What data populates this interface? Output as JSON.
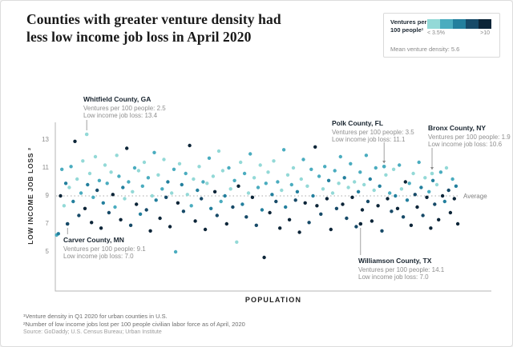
{
  "header": {
    "title_line1": "Counties with greater venture density had",
    "title_line2": "less low income job loss in April 2020"
  },
  "legend": {
    "title_line1": "Ventures per",
    "title_line2": "100 people¹",
    "min_label": "< 3.5%",
    "max_label": ">10",
    "mean_label": "Mean venture density: 5.6"
  },
  "footnotes": {
    "note1": "¹Venture density in Q1 2020 for urban counties in U.S.",
    "note2": "²Number of low income jobs lost per 100 people civilian labor force as of April, 2020",
    "source": "Source: GoDaddy; U.S. Census Bureau; Urban Institute"
  },
  "chart_data": {
    "type": "scatter",
    "xlabel": "POPULATION",
    "ylabel": "LOW INCOME JOB LOSS ²",
    "y_ticks": [
      13,
      11,
      9,
      7,
      5
    ],
    "ylim": [
      4,
      14
    ],
    "x_axis_note": "population rank, no numeric ticks shown",
    "average_value": 9,
    "average_label": "Average",
    "legend_position": "top-right",
    "grid": false,
    "palette": [
      "#93d9d7",
      "#4aacbf",
      "#237f9d",
      "#174a68",
      "#0c2538"
    ],
    "labeled_points": [
      {
        "name": "Whitfield County, GA",
        "ventures_label": "Ventures per 100 people: 2.5",
        "jobloss_label": "Low income job loss: 13.4",
        "x": 7.2,
        "y": 13.4,
        "c": 0
      },
      {
        "name": "Carver County, MN",
        "ventures_label": "Ventures per 100 people: 9.1",
        "jobloss_label": "Low income job loss: 7.0",
        "x": 2.8,
        "y": 7.0,
        "c": 3
      },
      {
        "name": "Polk County, FL",
        "ventures_label": "Ventures per 100 people: 3.5",
        "jobloss_label": "Low income job loss: 11.1",
        "x": 75.4,
        "y": 11.1,
        "c": 1
      },
      {
        "name": "Bronx County, NY",
        "ventures_label": "Ventures per 100 people: 1.9",
        "jobloss_label": "Low income job loss: 10.6",
        "x": 86.4,
        "y": 10.6,
        "c": 0
      },
      {
        "name": "Williamson County, TX",
        "ventures_label": "Ventures per 100 people: 14.1",
        "jobloss_label": "Low income job loss: 7.0",
        "x": 70.0,
        "y": 7.0,
        "c": 4
      }
    ],
    "points": [
      [
        0.3,
        6.2,
        1
      ],
      [
        0.7,
        6.3,
        2
      ],
      [
        1.2,
        9.0,
        4
      ],
      [
        1.5,
        10.9,
        1
      ],
      [
        2.0,
        8.3,
        0
      ],
      [
        2.4,
        9.9,
        2
      ],
      [
        3.2,
        9.6,
        0
      ],
      [
        3.6,
        11.1,
        1
      ],
      [
        4.1,
        8.6,
        2
      ],
      [
        4.5,
        12.9,
        4
      ],
      [
        5.0,
        10.2,
        0
      ],
      [
        5.4,
        7.6,
        3
      ],
      [
        5.9,
        9.2,
        1
      ],
      [
        6.3,
        11.5,
        0
      ],
      [
        6.8,
        8.1,
        4
      ],
      [
        7.4,
        9.8,
        2
      ],
      [
        7.9,
        10.6,
        0
      ],
      [
        8.3,
        7.1,
        4
      ],
      [
        8.7,
        8.9,
        1
      ],
      [
        9.2,
        11.8,
        0
      ],
      [
        9.6,
        9.4,
        3
      ],
      [
        10.1,
        10.1,
        1
      ],
      [
        10.5,
        6.7,
        4
      ],
      [
        11.0,
        8.5,
        2
      ],
      [
        11.4,
        11.2,
        0
      ],
      [
        11.9,
        9.9,
        1
      ],
      [
        12.3,
        7.8,
        3
      ],
      [
        12.8,
        10.7,
        0
      ],
      [
        13.2,
        9.1,
        4
      ],
      [
        13.7,
        8.2,
        1
      ],
      [
        14.1,
        11.9,
        0
      ],
      [
        14.6,
        10.4,
        1
      ],
      [
        15.0,
        7.3,
        4
      ],
      [
        15.5,
        9.6,
        2
      ],
      [
        15.9,
        8.8,
        0
      ],
      [
        16.4,
        12.4,
        4
      ],
      [
        16.8,
        10.0,
        1
      ],
      [
        17.3,
        6.9,
        3
      ],
      [
        17.7,
        9.3,
        0
      ],
      [
        18.2,
        11.0,
        1
      ],
      [
        18.6,
        8.4,
        4
      ],
      [
        19.1,
        10.8,
        0
      ],
      [
        19.5,
        7.7,
        2
      ],
      [
        20.0,
        9.7,
        1
      ],
      [
        20.4,
        11.4,
        0
      ],
      [
        20.9,
        8.0,
        3
      ],
      [
        21.3,
        10.3,
        1
      ],
      [
        21.8,
        6.5,
        4
      ],
      [
        22.2,
        9.0,
        0
      ],
      [
        22.7,
        12.1,
        1
      ],
      [
        23.1,
        8.7,
        2
      ],
      [
        23.6,
        10.5,
        0
      ],
      [
        24.0,
        7.4,
        4
      ],
      [
        24.5,
        9.5,
        1
      ],
      [
        24.9,
        11.6,
        0
      ],
      [
        25.4,
        8.9,
        3
      ],
      [
        25.8,
        10.0,
        2
      ],
      [
        26.3,
        6.8,
        4
      ],
      [
        26.7,
        9.2,
        0
      ],
      [
        27.2,
        10.9,
        1
      ],
      [
        27.6,
        5.0,
        1
      ],
      [
        28.1,
        8.5,
        4
      ],
      [
        28.5,
        11.3,
        0
      ],
      [
        29.0,
        9.8,
        2
      ],
      [
        29.4,
        7.9,
        3
      ],
      [
        29.9,
        10.6,
        1
      ],
      [
        30.3,
        9.1,
        0
      ],
      [
        30.8,
        12.6,
        4
      ],
      [
        31.2,
        8.3,
        1
      ],
      [
        31.7,
        10.2,
        0
      ],
      [
        32.1,
        7.2,
        4
      ],
      [
        32.6,
        9.4,
        2
      ],
      [
        33.0,
        11.1,
        0
      ],
      [
        33.5,
        8.8,
        3
      ],
      [
        33.9,
        10.0,
        1
      ],
      [
        34.4,
        6.6,
        4
      ],
      [
        34.8,
        9.9,
        0
      ],
      [
        35.3,
        11.7,
        1
      ],
      [
        35.7,
        8.1,
        2
      ],
      [
        36.2,
        10.4,
        0
      ],
      [
        36.6,
        9.3,
        4
      ],
      [
        37.1,
        7.6,
        3
      ],
      [
        37.5,
        12.2,
        0
      ],
      [
        38.0,
        8.6,
        1
      ],
      [
        38.4,
        10.8,
        0
      ],
      [
        38.9,
        9.0,
        2
      ],
      [
        39.3,
        7.0,
        4
      ],
      [
        39.8,
        11.0,
        1
      ],
      [
        40.2,
        9.5,
        0
      ],
      [
        40.7,
        8.2,
        3
      ],
      [
        41.1,
        10.1,
        1
      ],
      [
        41.6,
        5.7,
        0
      ],
      [
        42.0,
        9.7,
        4
      ],
      [
        42.5,
        11.4,
        0
      ],
      [
        42.9,
        8.4,
        2
      ],
      [
        43.4,
        10.6,
        1
      ],
      [
        43.8,
        7.5,
        3
      ],
      [
        44.3,
        9.2,
        0
      ],
      [
        44.7,
        12.0,
        1
      ],
      [
        45.2,
        8.9,
        4
      ],
      [
        45.6,
        10.3,
        0
      ],
      [
        46.1,
        6.9,
        3
      ],
      [
        46.5,
        9.6,
        1
      ],
      [
        47.0,
        11.2,
        0
      ],
      [
        47.4,
        8.0,
        2
      ],
      [
        47.9,
        4.6,
        4
      ],
      [
        48.3,
        9.9,
        1
      ],
      [
        48.8,
        10.7,
        0
      ],
      [
        49.2,
        7.8,
        4
      ],
      [
        49.7,
        9.1,
        2
      ],
      [
        50.1,
        11.5,
        0
      ],
      [
        50.6,
        8.6,
        3
      ],
      [
        51.0,
        10.0,
        1
      ],
      [
        51.5,
        6.7,
        4
      ],
      [
        51.9,
        9.4,
        0
      ],
      [
        52.4,
        12.3,
        1
      ],
      [
        52.8,
        8.2,
        2
      ],
      [
        53.3,
        10.5,
        0
      ],
      [
        53.7,
        7.3,
        4
      ],
      [
        54.2,
        9.8,
        1
      ],
      [
        54.6,
        11.0,
        0
      ],
      [
        55.1,
        8.7,
        3
      ],
      [
        55.5,
        9.3,
        2
      ],
      [
        56.0,
        6.4,
        4
      ],
      [
        56.4,
        10.2,
        0
      ],
      [
        56.9,
        11.6,
        1
      ],
      [
        57.3,
        8.5,
        4
      ],
      [
        57.8,
        9.7,
        0
      ],
      [
        58.2,
        7.1,
        3
      ],
      [
        58.7,
        10.9,
        1
      ],
      [
        59.1,
        9.0,
        2
      ],
      [
        59.6,
        12.5,
        4
      ],
      [
        60.0,
        8.3,
        4
      ],
      [
        60.5,
        10.4,
        1
      ],
      [
        60.9,
        7.7,
        3
      ],
      [
        61.4,
        9.5,
        0
      ],
      [
        61.8,
        11.1,
        1
      ],
      [
        62.3,
        8.8,
        4
      ],
      [
        62.7,
        10.1,
        2
      ],
      [
        63.2,
        6.6,
        4
      ],
      [
        63.6,
        9.2,
        0
      ],
      [
        64.1,
        10.8,
        1
      ],
      [
        64.5,
        8.1,
        3
      ],
      [
        65.0,
        9.9,
        0
      ],
      [
        65.4,
        11.8,
        1
      ],
      [
        65.9,
        8.4,
        4
      ],
      [
        66.3,
        10.3,
        2
      ],
      [
        66.8,
        7.4,
        3
      ],
      [
        67.2,
        9.6,
        0
      ],
      [
        67.7,
        11.3,
        1
      ],
      [
        68.1,
        8.9,
        4
      ],
      [
        68.6,
        10.0,
        0
      ],
      [
        69.0,
        6.8,
        3
      ],
      [
        69.5,
        9.3,
        2
      ],
      [
        69.9,
        10.7,
        1
      ],
      [
        70.4,
        8.0,
        4
      ],
      [
        70.8,
        9.8,
        0
      ],
      [
        71.3,
        11.9,
        1
      ],
      [
        71.7,
        8.6,
        3
      ],
      [
        72.2,
        10.2,
        2
      ],
      [
        72.6,
        7.2,
        4
      ],
      [
        73.1,
        9.4,
        0
      ],
      [
        73.5,
        11.0,
        1
      ],
      [
        74.0,
        8.3,
        4
      ],
      [
        74.4,
        9.7,
        2
      ],
      [
        74.9,
        6.5,
        3
      ],
      [
        75.8,
        10.5,
        0
      ],
      [
        76.2,
        8.8,
        4
      ],
      [
        76.7,
        9.2,
        1
      ],
      [
        77.1,
        7.9,
        3
      ],
      [
        77.6,
        10.9,
        0
      ],
      [
        78.0,
        9.0,
        2
      ],
      [
        78.5,
        8.1,
        4
      ],
      [
        78.9,
        11.2,
        1
      ],
      [
        79.4,
        9.5,
        0
      ],
      [
        79.8,
        7.5,
        3
      ],
      [
        80.3,
        10.0,
        4
      ],
      [
        80.7,
        8.7,
        2
      ],
      [
        81.2,
        9.9,
        1
      ],
      [
        81.6,
        6.9,
        4
      ],
      [
        82.1,
        10.6,
        0
      ],
      [
        82.5,
        9.1,
        3
      ],
      [
        83.0,
        8.2,
        4
      ],
      [
        83.4,
        11.4,
        1
      ],
      [
        83.9,
        9.6,
        2
      ],
      [
        84.3,
        7.6,
        3
      ],
      [
        84.8,
        10.3,
        0
      ],
      [
        85.2,
        8.9,
        4
      ],
      [
        85.7,
        9.3,
        1
      ],
      [
        86.1,
        6.7,
        4
      ],
      [
        86.6,
        10.1,
        2
      ],
      [
        87.0,
        8.4,
        3
      ],
      [
        87.5,
        9.8,
        0
      ],
      [
        87.9,
        7.3,
        4
      ],
      [
        88.4,
        10.7,
        1
      ],
      [
        88.8,
        9.0,
        4
      ],
      [
        89.3,
        8.6,
        2
      ],
      [
        89.7,
        11.0,
        0
      ],
      [
        90.2,
        9.4,
        3
      ],
      [
        90.6,
        7.8,
        4
      ],
      [
        91.1,
        10.2,
        1
      ],
      [
        91.5,
        8.8,
        4
      ],
      [
        91.9,
        9.7,
        2
      ],
      [
        92.3,
        7.0,
        4
      ]
    ]
  }
}
